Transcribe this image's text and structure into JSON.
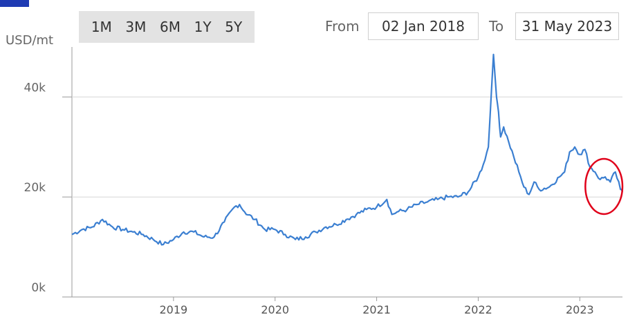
{
  "controls": {
    "ranges": [
      "1M",
      "3M",
      "6M",
      "1Y",
      "5Y"
    ],
    "from_label": "From",
    "from_date": "02 Jan 2018",
    "to_label": "To",
    "to_date": "31 May 2023"
  },
  "colors": {
    "line": "#3b7fd1",
    "grid": "#d6d6d6",
    "highlight_circle": "#e0001a",
    "brand": "#1f3bb3"
  },
  "chart_data": {
    "type": "line",
    "ylabel": "USD/mt",
    "ylim": [
      0,
      50000
    ],
    "y_ticks": [
      {
        "value": 0,
        "label": "0k"
      },
      {
        "value": 20000,
        "label": "20k"
      },
      {
        "value": 40000,
        "label": "40k"
      }
    ],
    "xlim": [
      2018.0,
      2023.42
    ],
    "x_ticks": [
      {
        "value": 2019,
        "label": "2019"
      },
      {
        "value": 2020,
        "label": "2020"
      },
      {
        "value": 2021,
        "label": "2021"
      },
      {
        "value": 2022,
        "label": "2022"
      },
      {
        "value": 2023,
        "label": "2023"
      }
    ],
    "grid": "horizontal",
    "annotation": {
      "type": "circle",
      "x_range": [
        2023.0,
        2023.42
      ],
      "y_center": 21000
    },
    "series": [
      {
        "x": [
          2018.0,
          2018.1,
          2018.2,
          2018.3,
          2018.4,
          2018.5,
          2018.6,
          2018.7,
          2018.8,
          2018.9,
          2019.0,
          2019.1,
          2019.2,
          2019.3,
          2019.4,
          2019.5,
          2019.6,
          2019.65,
          2019.7,
          2019.8,
          2019.9,
          2020.0,
          2020.1,
          2020.2,
          2020.3,
          2020.4,
          2020.5,
          2020.6,
          2020.7,
          2020.8,
          2020.9,
          2021.0,
          2021.1,
          2021.15,
          2021.2,
          2021.3,
          2021.4,
          2021.5,
          2021.6,
          2021.7,
          2021.8,
          2021.9,
          2022.0,
          2022.05,
          2022.1,
          2022.15,
          2022.18,
          2022.2,
          2022.22,
          2022.25,
          2022.3,
          2022.35,
          2022.4,
          2022.45,
          2022.5,
          2022.55,
          2022.6,
          2022.7,
          2022.8,
          2022.85,
          2022.9,
          2022.95,
          2023.0,
          2023.05,
          2023.1,
          2023.15,
          2023.2,
          2023.25,
          2023.3,
          2023.35,
          2023.4,
          2023.42
        ],
        "y": [
          12500,
          13500,
          14000,
          15500,
          14000,
          13500,
          13000,
          12500,
          11500,
          10500,
          11500,
          13000,
          13000,
          12000,
          12000,
          15000,
          18000,
          18500,
          17000,
          15500,
          13500,
          13500,
          12500,
          11500,
          12000,
          13000,
          14000,
          14500,
          15500,
          16500,
          17500,
          18000,
          19500,
          16500,
          17000,
          17500,
          18500,
          19000,
          19500,
          20000,
          20000,
          21000,
          24000,
          26500,
          30000,
          48500,
          40000,
          37000,
          32000,
          34000,
          31000,
          28000,
          25000,
          22000,
          20500,
          23000,
          21500,
          22000,
          24000,
          25000,
          29000,
          30000,
          28500,
          29500,
          26000,
          25000,
          23500,
          24000,
          23000,
          25000,
          21500,
          21000
        ]
      }
    ]
  }
}
